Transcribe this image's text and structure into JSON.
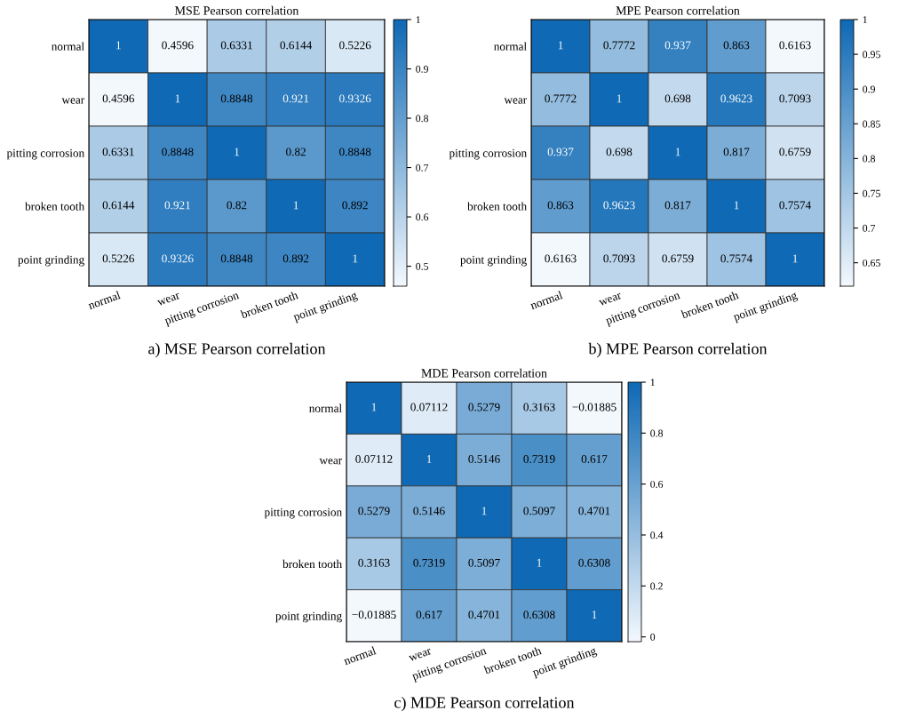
{
  "chart_data": [
    {
      "type": "heatmap",
      "title": "MSE Pearson correlation",
      "annotations": [
        "a) MSE Pearson correlation"
      ],
      "data_labels": true,
      "colors": [
        "#f3f8fd",
        "#0f69b4"
      ],
      "categories": [
        "normal",
        "wear",
        "pitting corrosion",
        "broken tooth",
        "point grinding"
      ],
      "y_categories": [
        "normal",
        "wear",
        "pitting corrosion",
        "broken tooth",
        "point grinding"
      ],
      "cells": [
        [
          1,
          0.4596,
          0.6331,
          0.6144,
          0.5226
        ],
        [
          0.4596,
          1,
          0.8848,
          0.921,
          0.9326
        ],
        [
          0.6331,
          0.8848,
          1,
          0.82,
          0.8848
        ],
        [
          0.6144,
          0.921,
          0.82,
          1,
          0.892
        ],
        [
          0.5226,
          0.9326,
          0.8848,
          0.892,
          1
        ]
      ],
      "clim": [
        0.4596,
        1
      ],
      "cticks": [
        0.5,
        0.6,
        0.7,
        0.8,
        0.9,
        1
      ]
    },
    {
      "type": "heatmap",
      "title": "MPE Pearson correlation",
      "annotations": [
        "b) MPE Pearson correlation"
      ],
      "data_labels": true,
      "colors": [
        "#f3f8fd",
        "#0f69b4"
      ],
      "categories": [
        "normal",
        "wear",
        "pitting corrosion",
        "broken tooth",
        "point grinding"
      ],
      "y_categories": [
        "normal",
        "wear",
        "pitting corrosion",
        "broken tooth",
        "point grinding"
      ],
      "cells": [
        [
          1,
          0.7772,
          0.937,
          0.863,
          0.6163
        ],
        [
          0.7772,
          1,
          0.698,
          0.9623,
          0.7093
        ],
        [
          0.937,
          0.698,
          1,
          0.817,
          0.6759
        ],
        [
          0.863,
          0.9623,
          0.817,
          1,
          0.7574
        ],
        [
          0.6163,
          0.7093,
          0.6759,
          0.7574,
          1
        ]
      ],
      "clim": [
        0.6163,
        1
      ],
      "cticks": [
        0.65,
        0.7,
        0.75,
        0.8,
        0.85,
        0.9,
        0.95,
        1
      ]
    },
    {
      "type": "heatmap",
      "title": "MDE Pearson correlation",
      "annotations": [
        "c) MDE Pearson correlation"
      ],
      "data_labels": true,
      "colors": [
        "#f3f8fd",
        "#0f69b4"
      ],
      "categories": [
        "normal",
        "wear",
        "pitting corrosion",
        "broken tooth",
        "point grinding"
      ],
      "y_categories": [
        "normal",
        "wear",
        "pitting corrosion",
        "broken tooth",
        "point grinding"
      ],
      "cells": [
        [
          1,
          0.07112,
          0.5279,
          0.3163,
          -0.01885
        ],
        [
          0.07112,
          1,
          0.5146,
          0.7319,
          0.617
        ],
        [
          0.5279,
          0.5146,
          1,
          0.5097,
          0.4701
        ],
        [
          0.3163,
          0.7319,
          0.5097,
          1,
          0.6308
        ],
        [
          -0.01885,
          0.617,
          0.4701,
          0.6308,
          1
        ]
      ],
      "clim": [
        -0.01885,
        1
      ],
      "cticks": [
        0,
        0.2,
        0.4,
        0.6,
        0.8,
        1
      ]
    }
  ]
}
